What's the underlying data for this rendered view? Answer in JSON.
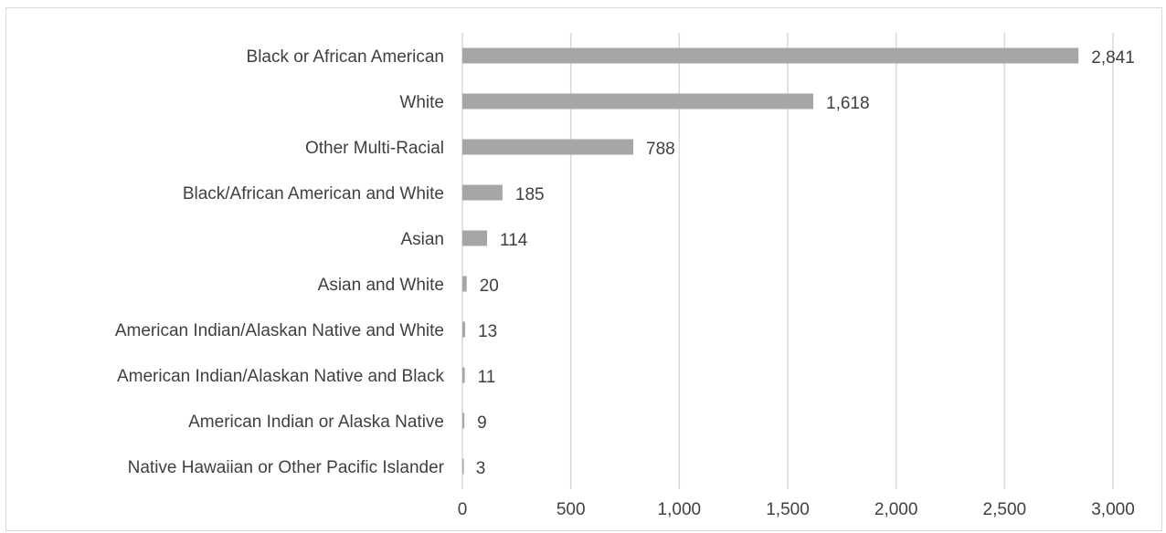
{
  "chart_data": {
    "type": "bar",
    "orientation": "horizontal",
    "title": "",
    "xlabel": "",
    "ylabel": "",
    "categories": [
      "Black or African American",
      "White",
      "Other Multi-Racial",
      "Black/African American and White",
      "Asian",
      "Asian and White",
      "American Indian/Alaskan Native and White",
      "American Indian/Alaskan Native and Black",
      "American Indian or Alaska Native",
      "Native Hawaiian or Other Pacific Islander"
    ],
    "values": [
      2841,
      1618,
      788,
      185,
      114,
      20,
      13,
      11,
      9,
      3
    ],
    "value_labels": [
      "2,841",
      "1,618",
      "788",
      "185",
      "114",
      "20",
      "13",
      "11",
      "9",
      "3"
    ],
    "xlim": [
      0,
      3000
    ],
    "x_ticks": [
      0,
      500,
      1000,
      1500,
      2000,
      2500,
      3000
    ],
    "x_tick_labels": [
      "0",
      "500",
      "1,000",
      "1,500",
      "2,000",
      "2,500",
      "3,000"
    ],
    "grid": "vertical",
    "legend": "none",
    "bar_color": "#a6a6a6",
    "grid_color": "#d9d9d9"
  }
}
